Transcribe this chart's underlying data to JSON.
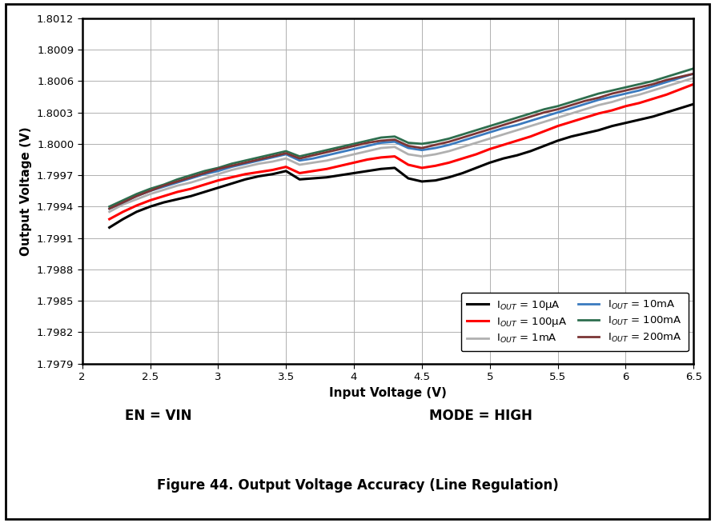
{
  "title": "Figure 44. Output Voltage Accuracy (Line Regulation)",
  "subtitle_left": "EN = VIN",
  "subtitle_right": "MODE = HIGH",
  "xlabel": "Input Voltage (V)",
  "ylabel": "Output Voltage (V)",
  "xlim": [
    2.2,
    6.5
  ],
  "ylim": [
    1.7979,
    1.8012
  ],
  "xticks": [
    2,
    2.5,
    3,
    3.5,
    4,
    4.5,
    5,
    5.5,
    6,
    6.5
  ],
  "yticks": [
    1.7979,
    1.7982,
    1.7985,
    1.7988,
    1.7991,
    1.7994,
    1.7997,
    1.8,
    1.8003,
    1.8006,
    1.8009,
    1.8012
  ],
  "background_color": "#ffffff",
  "plot_bg_color": "#ffffff",
  "grid_color": "#b0b0b0",
  "series": [
    {
      "label": "I$_{OUT}$ = 10μA",
      "color": "#000000",
      "linewidth": 2.2,
      "x": [
        2.2,
        2.3,
        2.4,
        2.5,
        2.6,
        2.7,
        2.8,
        2.9,
        3.0,
        3.1,
        3.2,
        3.3,
        3.4,
        3.5,
        3.6,
        3.7,
        3.8,
        3.9,
        4.0,
        4.1,
        4.2,
        4.3,
        4.4,
        4.5,
        4.6,
        4.7,
        4.8,
        4.9,
        5.0,
        5.1,
        5.2,
        5.3,
        5.4,
        5.5,
        5.6,
        5.7,
        5.8,
        5.9,
        6.0,
        6.1,
        6.2,
        6.3,
        6.4,
        6.5
      ],
      "y": [
        1.7992,
        1.79928,
        1.79935,
        1.7994,
        1.79944,
        1.79947,
        1.7995,
        1.79954,
        1.79958,
        1.79962,
        1.79966,
        1.79969,
        1.79971,
        1.79974,
        1.79966,
        1.79967,
        1.79968,
        1.7997,
        1.79972,
        1.79974,
        1.79976,
        1.79977,
        1.79967,
        1.79964,
        1.79965,
        1.79968,
        1.79972,
        1.79977,
        1.79982,
        1.79986,
        1.79989,
        1.79993,
        1.79998,
        1.80003,
        1.80007,
        1.8001,
        1.80013,
        1.80017,
        1.8002,
        1.80023,
        1.80026,
        1.8003,
        1.80034,
        1.80038
      ]
    },
    {
      "label": "I$_{OUT}$ = 100μA",
      "color": "#ff0000",
      "linewidth": 2.2,
      "x": [
        2.2,
        2.3,
        2.4,
        2.5,
        2.6,
        2.7,
        2.8,
        2.9,
        3.0,
        3.1,
        3.2,
        3.3,
        3.4,
        3.5,
        3.6,
        3.7,
        3.8,
        3.9,
        4.0,
        4.1,
        4.2,
        4.3,
        4.4,
        4.5,
        4.6,
        4.7,
        4.8,
        4.9,
        5.0,
        5.1,
        5.2,
        5.3,
        5.4,
        5.5,
        5.6,
        5.7,
        5.8,
        5.9,
        6.0,
        6.1,
        6.2,
        6.3,
        6.4,
        6.5
      ],
      "y": [
        1.79928,
        1.79935,
        1.79941,
        1.79946,
        1.7995,
        1.79954,
        1.79957,
        1.79961,
        1.79965,
        1.79968,
        1.79971,
        1.79973,
        1.79975,
        1.79978,
        1.79972,
        1.79974,
        1.79976,
        1.79979,
        1.79982,
        1.79985,
        1.79987,
        1.79988,
        1.7998,
        1.79977,
        1.79979,
        1.79982,
        1.79986,
        1.7999,
        1.79995,
        1.79999,
        1.80003,
        1.80007,
        1.80012,
        1.80017,
        1.80021,
        1.80025,
        1.80029,
        1.80032,
        1.80036,
        1.80039,
        1.80043,
        1.80047,
        1.80052,
        1.80057
      ]
    },
    {
      "label": "I$_{OUT}$ = 1mA",
      "color": "#b0b0b0",
      "linewidth": 2.0,
      "x": [
        2.2,
        2.3,
        2.4,
        2.5,
        2.6,
        2.7,
        2.8,
        2.9,
        3.0,
        3.1,
        3.2,
        3.3,
        3.4,
        3.5,
        3.6,
        3.7,
        3.8,
        3.9,
        4.0,
        4.1,
        4.2,
        4.3,
        4.4,
        4.5,
        4.6,
        4.7,
        4.8,
        4.9,
        5.0,
        5.1,
        5.2,
        5.3,
        5.4,
        5.5,
        5.6,
        5.7,
        5.8,
        5.9,
        6.0,
        6.1,
        6.2,
        6.3,
        6.4,
        6.5
      ],
      "y": [
        1.79935,
        1.79942,
        1.79947,
        1.79952,
        1.79956,
        1.7996,
        1.79963,
        1.79967,
        1.79971,
        1.79975,
        1.79978,
        1.79981,
        1.79983,
        1.79986,
        1.7998,
        1.79982,
        1.79984,
        1.79987,
        1.7999,
        1.79993,
        1.79996,
        1.79997,
        1.7999,
        1.79988,
        1.7999,
        1.79993,
        1.79997,
        1.80001,
        1.80005,
        1.80009,
        1.80013,
        1.80017,
        1.80021,
        1.80025,
        1.80029,
        1.80033,
        1.80037,
        1.8004,
        1.80044,
        1.80047,
        1.80051,
        1.80055,
        1.80059,
        1.80063
      ]
    },
    {
      "label": "I$_{OUT}$ = 10mA",
      "color": "#3a7abf",
      "linewidth": 2.0,
      "x": [
        2.2,
        2.3,
        2.4,
        2.5,
        2.6,
        2.7,
        2.8,
        2.9,
        3.0,
        3.1,
        3.2,
        3.3,
        3.4,
        3.5,
        3.6,
        3.7,
        3.8,
        3.9,
        4.0,
        4.1,
        4.2,
        4.3,
        4.4,
        4.5,
        4.6,
        4.7,
        4.8,
        4.9,
        5.0,
        5.1,
        5.2,
        5.3,
        5.4,
        5.5,
        5.6,
        5.7,
        5.8,
        5.9,
        6.0,
        6.1,
        6.2,
        6.3,
        6.4,
        6.5
      ],
      "y": [
        1.79938,
        1.79944,
        1.7995,
        1.79955,
        1.79959,
        1.79963,
        1.79967,
        1.79971,
        1.79974,
        1.79978,
        1.79981,
        1.79984,
        1.79987,
        1.7999,
        1.79984,
        1.79986,
        1.79989,
        1.79992,
        1.79995,
        1.79998,
        1.80001,
        1.80002,
        1.79996,
        1.79994,
        1.79996,
        1.79999,
        1.80003,
        1.80007,
        1.80011,
        1.80015,
        1.80018,
        1.80022,
        1.80026,
        1.8003,
        1.80034,
        1.80038,
        1.80042,
        1.80045,
        1.80048,
        1.80051,
        1.80055,
        1.80059,
        1.80063,
        1.80067
      ]
    },
    {
      "label": "I$_{OUT}$ = 100mA",
      "color": "#2d6e4e",
      "linewidth": 2.0,
      "x": [
        2.2,
        2.3,
        2.4,
        2.5,
        2.6,
        2.7,
        2.8,
        2.9,
        3.0,
        3.1,
        3.2,
        3.3,
        3.4,
        3.5,
        3.6,
        3.7,
        3.8,
        3.9,
        4.0,
        4.1,
        4.2,
        4.3,
        4.4,
        4.5,
        4.6,
        4.7,
        4.8,
        4.9,
        5.0,
        5.1,
        5.2,
        5.3,
        5.4,
        5.5,
        5.6,
        5.7,
        5.8,
        5.9,
        6.0,
        6.1,
        6.2,
        6.3,
        6.4,
        6.5
      ],
      "y": [
        1.7994,
        1.79946,
        1.79952,
        1.79957,
        1.79961,
        1.79966,
        1.7997,
        1.79974,
        1.79977,
        1.79981,
        1.79984,
        1.79987,
        1.7999,
        1.79993,
        1.79988,
        1.79991,
        1.79994,
        1.79997,
        1.8,
        1.80003,
        1.80006,
        1.80007,
        1.80001,
        1.8,
        1.80002,
        1.80005,
        1.80009,
        1.80013,
        1.80017,
        1.80021,
        1.80025,
        1.80029,
        1.80033,
        1.80036,
        1.8004,
        1.80044,
        1.80048,
        1.80051,
        1.80054,
        1.80057,
        1.8006,
        1.80064,
        1.80068,
        1.80072
      ]
    },
    {
      "label": "I$_{OUT}$ = 200mA",
      "color": "#7b3535",
      "linewidth": 2.0,
      "x": [
        2.2,
        2.3,
        2.4,
        2.5,
        2.6,
        2.7,
        2.8,
        2.9,
        3.0,
        3.1,
        3.2,
        3.3,
        3.4,
        3.5,
        3.6,
        3.7,
        3.8,
        3.9,
        4.0,
        4.1,
        4.2,
        4.3,
        4.4,
        4.5,
        4.6,
        4.7,
        4.8,
        4.9,
        5.0,
        5.1,
        5.2,
        5.3,
        5.4,
        5.5,
        5.6,
        5.7,
        5.8,
        5.9,
        6.0,
        6.1,
        6.2,
        6.3,
        6.4,
        6.5
      ],
      "y": [
        1.79938,
        1.79944,
        1.7995,
        1.79955,
        1.7996,
        1.79964,
        1.79968,
        1.79972,
        1.79976,
        1.79979,
        1.79982,
        1.79985,
        1.79988,
        1.79991,
        1.79986,
        1.79989,
        1.79992,
        1.79995,
        1.79998,
        1.80001,
        1.80003,
        1.80004,
        1.79998,
        1.79996,
        1.79999,
        1.80002,
        1.80006,
        1.8001,
        1.80014,
        1.80018,
        1.80022,
        1.80026,
        1.8003,
        1.80033,
        1.80037,
        1.80041,
        1.80044,
        1.80048,
        1.80051,
        1.80054,
        1.80057,
        1.80061,
        1.80064,
        1.80067
      ]
    }
  ],
  "outer_border_color": "#000000",
  "border_color": "#000000"
}
